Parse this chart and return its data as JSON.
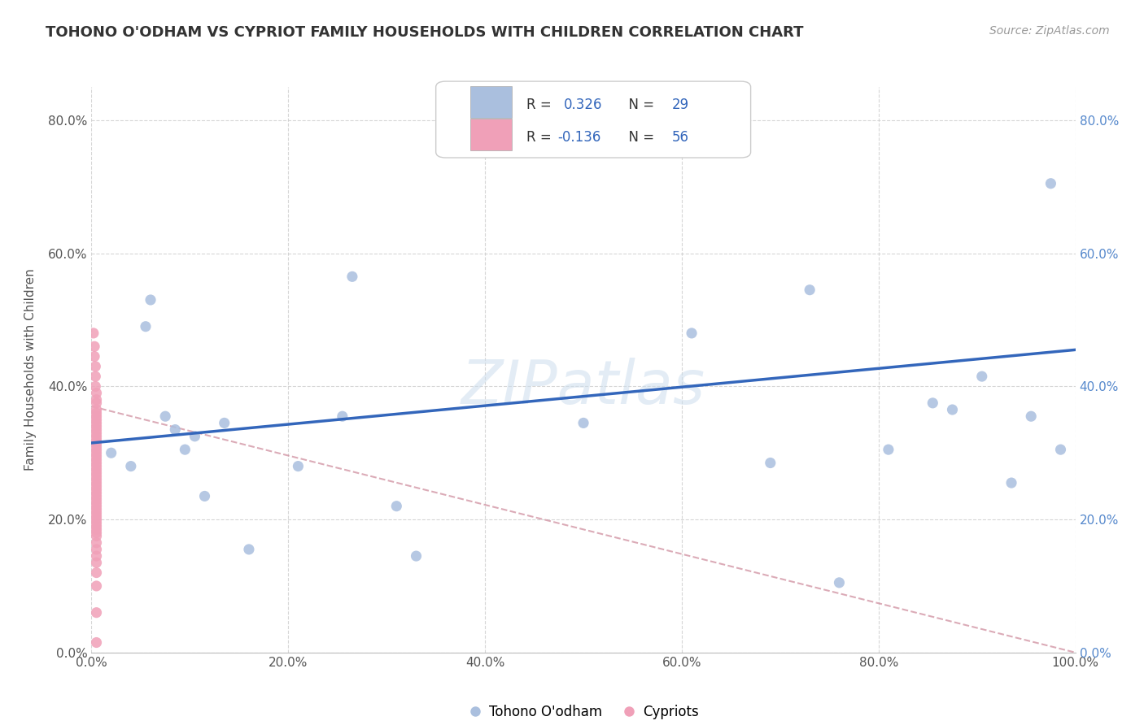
{
  "title": "TOHONO O'ODHAM VS CYPRIOT FAMILY HOUSEHOLDS WITH CHILDREN CORRELATION CHART",
  "source": "Source: ZipAtlas.com",
  "ylabel": "Family Households with Children",
  "xlim": [
    0.0,
    1.0
  ],
  "ylim": [
    0.0,
    0.85
  ],
  "xticks": [
    0.0,
    0.2,
    0.4,
    0.6,
    0.8,
    1.0
  ],
  "yticks": [
    0.0,
    0.2,
    0.4,
    0.6,
    0.8
  ],
  "xticklabels": [
    "0.0%",
    "20.0%",
    "40.0%",
    "60.0%",
    "80.0%",
    "100.0%"
  ],
  "yticklabels": [
    "0.0%",
    "20.0%",
    "40.0%",
    "60.0%",
    "80.0%"
  ],
  "legend_r1_label": "R =  0.326   N = 29",
  "legend_r2_label": "R = -0.136   N = 56",
  "watermark": "ZIPatlas",
  "blue_scatter_color": "#aabfde",
  "pink_scatter_color": "#f0a0b8",
  "line_blue_color": "#3366bb",
  "line_pink_color": "#cc8899",
  "background_color": "#ffffff",
  "grid_color": "#cccccc",
  "tohono_x": [
    0.02,
    0.04,
    0.055,
    0.06,
    0.075,
    0.085,
    0.095,
    0.105,
    0.115,
    0.135,
    0.16,
    0.21,
    0.255,
    0.265,
    0.31,
    0.33,
    0.5,
    0.61,
    0.69,
    0.73,
    0.76,
    0.81,
    0.855,
    0.875,
    0.905,
    0.935,
    0.955,
    0.975,
    0.985
  ],
  "tohono_y": [
    0.3,
    0.28,
    0.49,
    0.53,
    0.355,
    0.335,
    0.305,
    0.325,
    0.235,
    0.345,
    0.155,
    0.28,
    0.355,
    0.565,
    0.22,
    0.145,
    0.345,
    0.48,
    0.285,
    0.545,
    0.105,
    0.305,
    0.375,
    0.365,
    0.415,
    0.255,
    0.355,
    0.705,
    0.305
  ],
  "cypriot_x": [
    0.002,
    0.003,
    0.003,
    0.004,
    0.004,
    0.004,
    0.005,
    0.005,
    0.005,
    0.005,
    0.005,
    0.005,
    0.005,
    0.005,
    0.005,
    0.005,
    0.005,
    0.005,
    0.005,
    0.005,
    0.005,
    0.005,
    0.005,
    0.005,
    0.005,
    0.005,
    0.005,
    0.005,
    0.005,
    0.005,
    0.005,
    0.005,
    0.005,
    0.005,
    0.005,
    0.005,
    0.005,
    0.005,
    0.005,
    0.005,
    0.005,
    0.005,
    0.005,
    0.005,
    0.005,
    0.005,
    0.005,
    0.005,
    0.005,
    0.005,
    0.005,
    0.005,
    0.005,
    0.005,
    0.005,
    0.005
  ],
  "cypriot_y": [
    0.48,
    0.46,
    0.445,
    0.43,
    0.415,
    0.4,
    0.39,
    0.38,
    0.375,
    0.365,
    0.36,
    0.355,
    0.35,
    0.345,
    0.34,
    0.335,
    0.33,
    0.325,
    0.32,
    0.315,
    0.31,
    0.305,
    0.3,
    0.295,
    0.29,
    0.285,
    0.28,
    0.275,
    0.27,
    0.265,
    0.26,
    0.255,
    0.25,
    0.245,
    0.24,
    0.235,
    0.23,
    0.225,
    0.22,
    0.215,
    0.21,
    0.205,
    0.2,
    0.195,
    0.19,
    0.185,
    0.18,
    0.175,
    0.165,
    0.155,
    0.145,
    0.135,
    0.12,
    0.1,
    0.06,
    0.015
  ],
  "blue_line_x": [
    0.0,
    1.0
  ],
  "blue_line_y": [
    0.315,
    0.455
  ],
  "pink_line_x": [
    0.0,
    1.0
  ],
  "pink_line_y": [
    0.37,
    0.0
  ]
}
